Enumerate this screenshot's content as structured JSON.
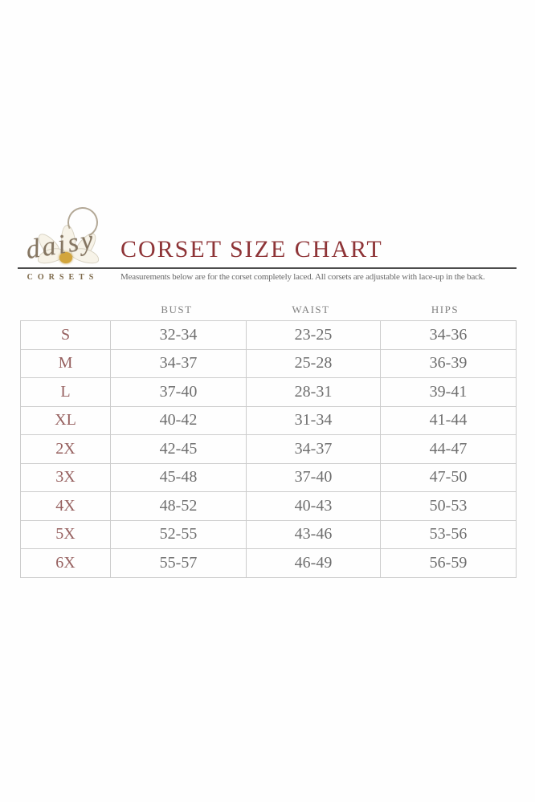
{
  "logo": {
    "script_text": "daisy",
    "sub_text": "corsets",
    "flower_icon": "daisy-flower",
    "flower_center_color": "#d2a53c",
    "script_color": "#857662"
  },
  "header": {
    "title": "CORSET SIZE CHART",
    "title_color": "#8e3437",
    "subtitle": "Measurements below are for the corset completely laced.  All corsets are adjustable with lace-up in the back."
  },
  "chart_data": {
    "type": "table",
    "title": "CORSET SIZE CHART",
    "columns": [
      "BUST",
      "WAIST",
      "HIPS"
    ],
    "rows": [
      {
        "size": "S",
        "bust": "32-34",
        "waist": "23-25",
        "hips": "34-36"
      },
      {
        "size": "M",
        "bust": "34-37",
        "waist": "25-28",
        "hips": "36-39"
      },
      {
        "size": "L",
        "bust": "37-40",
        "waist": "28-31",
        "hips": "39-41"
      },
      {
        "size": "XL",
        "bust": "40-42",
        "waist": "31-34",
        "hips": "41-44"
      },
      {
        "size": "2X",
        "bust": "42-45",
        "waist": "34-37",
        "hips": "44-47"
      },
      {
        "size": "3X",
        "bust": "45-48",
        "waist": "37-40",
        "hips": "47-50"
      },
      {
        "size": "4X",
        "bust": "48-52",
        "waist": "40-43",
        "hips": "50-53"
      },
      {
        "size": "5X",
        "bust": "52-55",
        "waist": "43-46",
        "hips": "53-56"
      },
      {
        "size": "6X",
        "bust": "55-57",
        "waist": "46-49",
        "hips": "56-59"
      }
    ],
    "layout_hints": {
      "grid": "on",
      "size_label_color": "#96605f",
      "value_color": "#6f6f6f",
      "border_color": "#cccccc",
      "header_color": "#818181"
    }
  }
}
